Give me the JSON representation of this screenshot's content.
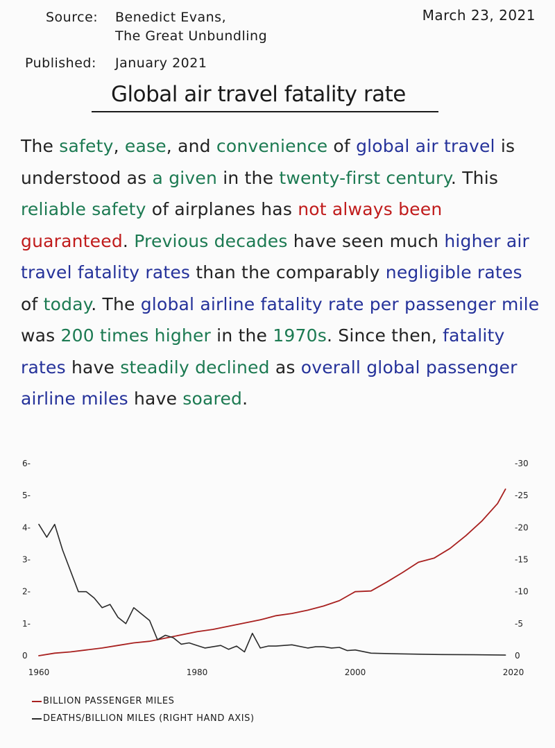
{
  "header": {
    "source_label": "Source:",
    "source_line1": "Benedict Evans,",
    "source_line2": "The Great Unbundling",
    "published_label": "Published:",
    "published_value": "January 2021",
    "date": "March 23, 2021"
  },
  "title": "Global air travel fatality rate",
  "colors": {
    "text": "#222222",
    "green": "#1c7a52",
    "blue": "#25329a",
    "red": "#c01b1b",
    "miles_series": "#a8201f",
    "deaths_series": "#2a2a2a"
  },
  "paragraph": [
    {
      "t": "The ",
      "c": "k"
    },
    {
      "t": "safety",
      "c": "g"
    },
    {
      "t": ", ",
      "c": "k"
    },
    {
      "t": "ease",
      "c": "g"
    },
    {
      "t": ", and ",
      "c": "k"
    },
    {
      "t": "convenience",
      "c": "g"
    },
    {
      "t": " of ",
      "c": "k"
    },
    {
      "t": "global air travel",
      "c": "b"
    },
    {
      "t": " is understood as ",
      "c": "k"
    },
    {
      "t": "a given",
      "c": "g"
    },
    {
      "t": " in the ",
      "c": "k"
    },
    {
      "t": "twenty-first century",
      "c": "g"
    },
    {
      "t": ". This ",
      "c": "k"
    },
    {
      "t": "reliable safety",
      "c": "g"
    },
    {
      "t": " of airplanes has ",
      "c": "k"
    },
    {
      "t": "not always been guaranteed",
      "c": "r"
    },
    {
      "t": ". ",
      "c": "k"
    },
    {
      "t": "Previous decades",
      "c": "g"
    },
    {
      "t": " have seen much ",
      "c": "k"
    },
    {
      "t": "higher air travel fatality rates",
      "c": "b"
    },
    {
      "t": " than the comparably ",
      "c": "k"
    },
    {
      "t": "negligible rates",
      "c": "b"
    },
    {
      "t": " of ",
      "c": "k"
    },
    {
      "t": "today",
      "c": "g"
    },
    {
      "t": ". The ",
      "c": "k"
    },
    {
      "t": "global airline fatality rate per passenger mile",
      "c": "b"
    },
    {
      "t": " was ",
      "c": "k"
    },
    {
      "t": "200 times higher",
      "c": "g"
    },
    {
      "t": " in the ",
      "c": "k"
    },
    {
      "t": "1970s",
      "c": "g"
    },
    {
      "t": ". Since then, ",
      "c": "k"
    },
    {
      "t": "fatality rates",
      "c": "b"
    },
    {
      "t": " have ",
      "c": "k"
    },
    {
      "t": "steadily declined",
      "c": "g"
    },
    {
      "t": " as ",
      "c": "k"
    },
    {
      "t": "overall global passenger airline miles",
      "c": "b"
    },
    {
      "t": " have ",
      "c": "k"
    },
    {
      "t": "soared",
      "c": "g"
    },
    {
      "t": ".",
      "c": "k"
    }
  ],
  "chart_data": {
    "type": "line",
    "title": "",
    "xlabel": "",
    "x_ticks": [
      "1960",
      "1980",
      "2000",
      "2020"
    ],
    "xlim": [
      1960,
      2020
    ],
    "left_axis": {
      "label": "",
      "ticks": [
        "0",
        "1",
        "2",
        "3",
        "4",
        "5",
        "6"
      ],
      "ylim": [
        0,
        6
      ]
    },
    "right_axis": {
      "label": "",
      "ticks": [
        "0",
        "5",
        "10",
        "15",
        "20",
        "25",
        "30"
      ],
      "ylim": [
        0,
        30
      ]
    },
    "grid": false,
    "legend_position": "bottom-left",
    "series": [
      {
        "name": "BILLION PASSENGER MILES",
        "axis": "left",
        "color": "#a8201f",
        "x": [
          1960,
          1962,
          1964,
          1966,
          1968,
          1970,
          1972,
          1974,
          1976,
          1978,
          1980,
          1982,
          1984,
          1986,
          1988,
          1990,
          1992,
          1994,
          1996,
          1998,
          2000,
          2002,
          2004,
          2006,
          2008,
          2010,
          2012,
          2014,
          2016,
          2018,
          2019
        ],
        "values": [
          0.0,
          0.08,
          0.12,
          0.18,
          0.24,
          0.32,
          0.4,
          0.45,
          0.55,
          0.65,
          0.75,
          0.82,
          0.92,
          1.02,
          1.12,
          1.25,
          1.32,
          1.42,
          1.55,
          1.72,
          2.0,
          2.02,
          2.3,
          2.6,
          2.92,
          3.05,
          3.35,
          3.75,
          4.2,
          4.75,
          5.2
        ]
      },
      {
        "name": "DEATHS/BILLION MILES (RIGHT HAND AXIS)",
        "axis": "right",
        "color": "#2a2a2a",
        "x": [
          1960,
          1961,
          1962,
          1963,
          1965,
          1966,
          1967,
          1968,
          1969,
          1970,
          1971,
          1972,
          1973,
          1974,
          1975,
          1976,
          1977,
          1978,
          1979,
          1980,
          1981,
          1982,
          1983,
          1984,
          1985,
          1986,
          1987,
          1988,
          1989,
          1990,
          1992,
          1994,
          1995,
          1996,
          1997,
          1998,
          1999,
          2000,
          2002,
          2005,
          2010,
          2015,
          2019
        ],
        "values": [
          20.5,
          18.5,
          20.5,
          16.5,
          10.0,
          10.0,
          9.0,
          7.5,
          8.0,
          6.0,
          5.0,
          7.5,
          6.5,
          5.5,
          2.5,
          3.2,
          2.8,
          1.8,
          2.0,
          1.6,
          1.2,
          1.4,
          1.6,
          1.0,
          1.5,
          0.6,
          3.5,
          1.2,
          1.5,
          1.5,
          1.7,
          1.2,
          1.4,
          1.4,
          1.2,
          1.3,
          0.8,
          0.9,
          0.4,
          0.3,
          0.2,
          0.15,
          0.1
        ]
      }
    ]
  }
}
